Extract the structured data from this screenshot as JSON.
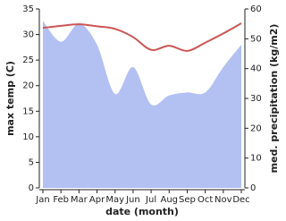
{
  "chart_data": {
    "type": "area-line",
    "categories": [
      "Jan",
      "Feb",
      "Mar",
      "Apr",
      "May",
      "Jun",
      "Jul",
      "Aug",
      "Sep",
      "Oct",
      "Nov",
      "Dec"
    ],
    "x_label": "date (month)",
    "y_label": "max temp (C)",
    "y2_label": "med. precipitation (kg/m2)",
    "series": [
      {
        "name": "med. precipitation",
        "kind": "area",
        "axis": "y2",
        "color": "#b3c0f2",
        "values": [
          56,
          49,
          55,
          48,
          31.5,
          40.5,
          28,
          31,
          32,
          32,
          40.5,
          48
        ]
      },
      {
        "name": "max temp",
        "kind": "line",
        "color": "#cc5555",
        "values": [
          31.3,
          31.7,
          32,
          31.6,
          31.1,
          29.5,
          27,
          27.8,
          26.8,
          28.4,
          30.2,
          32.2
        ]
      }
    ],
    "ylim": [
      0,
      35
    ],
    "yticks": [
      0,
      5,
      10,
      15,
      20,
      25,
      30,
      35
    ],
    "y2lim": [
      0,
      60
    ],
    "y2ticks": [
      0,
      10,
      20,
      30,
      40,
      50,
      60
    ]
  }
}
